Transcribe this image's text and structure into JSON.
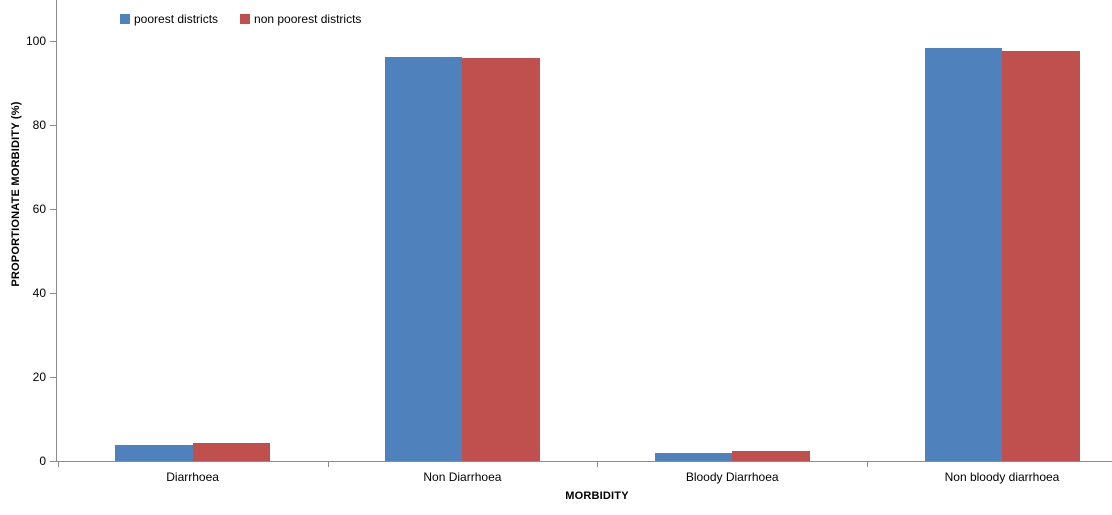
{
  "chart_data": {
    "type": "bar",
    "categories": [
      "Diarrhoea",
      "Non Diarrhoea",
      "Bloody Diarrhoea",
      "Non bloody diarrhoea"
    ],
    "series": [
      {
        "name": "poorest districts",
        "color": "#4F81BD",
        "values": [
          3.8,
          96.2,
          1.9,
          98.2
        ]
      },
      {
        "name": "non poorest districts",
        "color": "#C0504D",
        "values": [
          4.2,
          95.8,
          2.4,
          97.6
        ]
      }
    ],
    "title": "",
    "xlabel": "MORBIDITY",
    "ylabel": "PROPORTIONATE MORBIDITY (%)",
    "ylim": [
      0,
      100
    ],
    "yticks": [
      0,
      20,
      40,
      60,
      80,
      100
    ],
    "grid": false,
    "legend_position": "top-left",
    "axis_color": "#8C8C8C"
  }
}
